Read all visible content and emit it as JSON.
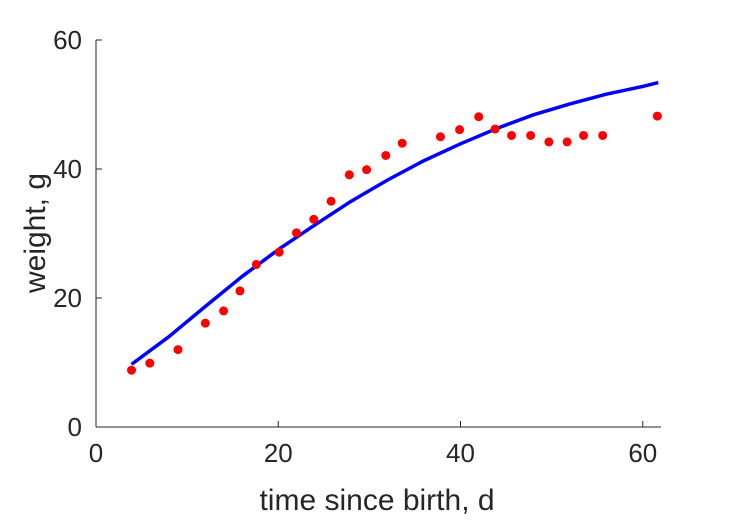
{
  "chart_data": {
    "type": "scatter",
    "title": "",
    "xlabel": "time since birth, d",
    "ylabel": "weight, g",
    "xlim": [
      0,
      62
    ],
    "ylim": [
      0,
      60
    ],
    "xticks": [
      0,
      20,
      40,
      60
    ],
    "yticks": [
      0,
      20,
      40,
      60
    ],
    "grid": false,
    "legend": "none",
    "series": [
      {
        "kind": "scatter",
        "color": "#ff0000",
        "marker": "filled-circle",
        "points": [
          [
            3.9,
            8.8
          ],
          [
            5.9,
            9.9
          ],
          [
            9.0,
            12.0
          ],
          [
            12.0,
            16.1
          ],
          [
            14.0,
            18.0
          ],
          [
            15.8,
            21.1
          ],
          [
            17.6,
            25.2
          ],
          [
            20.1,
            27.1
          ],
          [
            22.0,
            30.1
          ],
          [
            23.9,
            32.2
          ],
          [
            25.8,
            35.0
          ],
          [
            27.8,
            39.1
          ],
          [
            29.7,
            39.9
          ],
          [
            31.8,
            42.1
          ],
          [
            33.6,
            44.0
          ],
          [
            37.8,
            45.0
          ],
          [
            39.9,
            46.1
          ],
          [
            42.0,
            48.1
          ],
          [
            43.8,
            46.2
          ],
          [
            45.6,
            45.2
          ],
          [
            47.7,
            45.2
          ],
          [
            49.7,
            44.2
          ],
          [
            51.7,
            44.2
          ],
          [
            53.5,
            45.2
          ],
          [
            55.6,
            45.2
          ],
          [
            61.6,
            48.2
          ]
        ]
      },
      {
        "kind": "line",
        "color": "#0000ff",
        "points": [
          [
            3.9,
            9.7
          ],
          [
            8,
            14.0
          ],
          [
            12,
            18.7
          ],
          [
            16,
            23.3
          ],
          [
            20,
            27.5
          ],
          [
            24,
            31.3
          ],
          [
            28,
            35.0
          ],
          [
            32,
            38.3
          ],
          [
            36,
            41.3
          ],
          [
            40,
            43.9
          ],
          [
            44,
            46.3
          ],
          [
            48,
            48.4
          ],
          [
            52,
            50.1
          ],
          [
            56,
            51.6
          ],
          [
            60,
            52.8
          ],
          [
            61.7,
            53.4
          ]
        ]
      }
    ]
  }
}
